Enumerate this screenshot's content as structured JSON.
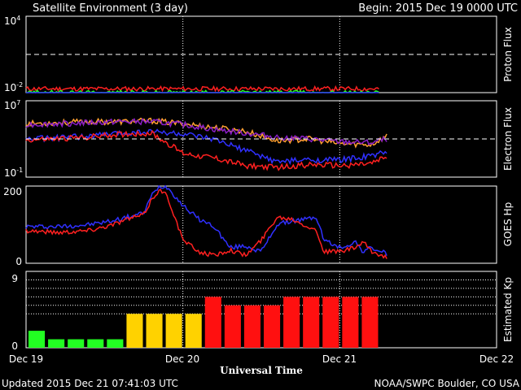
{
  "header": {
    "title": "Satellite Environment (3 day)",
    "begin": "Begin:  2015 Dec 19 0000 UTC"
  },
  "footer": {
    "updated": "Updated 2015 Dec 21 07:41:03 UTC",
    "credit": "NOAA/SWPC Boulder, CO USA"
  },
  "x_axis": {
    "title": "Universal Time",
    "tick_labels": [
      "Dec 19",
      "Dec 20",
      "Dec 21",
      "Dec 22"
    ]
  },
  "colors": {
    "red": "#ff2020",
    "green": "#22ff22",
    "blue": "#3030ff",
    "orange": "#ffa030",
    "purple": "#8a1ec8",
    "kp_green": "#22ff22",
    "kp_yellow": "#ffd200",
    "kp_red": "#ff1010"
  },
  "chart_data": [
    {
      "type": "line",
      "ylabel": "Proton Flux",
      "scale": "log",
      "ylim_exp": [
        -2,
        4
      ],
      "y_tick_labels": [
        "10^4",
        "10^-2"
      ],
      "threshold_exp": 1,
      "x_days": [
        0,
        0.25,
        0.5,
        0.75,
        1.0,
        1.25,
        1.5,
        1.75,
        2.0,
        2.25
      ],
      "series": [
        {
          "color": "red",
          "log_values": [
            -1.7,
            -1.7,
            -1.7,
            -1.7,
            -1.7,
            -1.7,
            -1.7,
            -1.7,
            -1.7,
            -1.7
          ]
        },
        {
          "color": "green",
          "log_values": [
            -2.0,
            -2.0,
            -2.0,
            -2.0,
            -2.0,
            -2.0,
            -2.0,
            -2.0,
            -2.0,
            -2.0
          ]
        },
        {
          "color": "blue",
          "log_values": [
            -2.3,
            -2.3,
            -2.3,
            -2.3,
            -2.3,
            -2.3,
            -2.3,
            -2.3,
            -2.3,
            -2.3
          ]
        }
      ]
    },
    {
      "type": "line",
      "ylabel": "Electron Flux",
      "scale": "log",
      "ylim_exp": [
        -1,
        7
      ],
      "y_tick_labels": [
        "10^7",
        "10^-1"
      ],
      "threshold_exp": 3,
      "x_days": [
        0,
        0.2,
        0.4,
        0.6,
        0.8,
        1.0,
        1.2,
        1.4,
        1.6,
        1.8,
        2.0,
        2.2,
        2.3
      ],
      "series": [
        {
          "color": "orange",
          "log_values": [
            4.6,
            4.7,
            4.8,
            4.8,
            4.9,
            4.6,
            4.2,
            3.8,
            2.8,
            3.0,
            2.5,
            2.4,
            3.3
          ]
        },
        {
          "color": "purple",
          "log_values": [
            4.5,
            4.6,
            4.7,
            4.8,
            4.8,
            4.5,
            4.0,
            3.6,
            3.2,
            3.0,
            2.7,
            2.6,
            3.0
          ]
        },
        {
          "color": "blue",
          "log_values": [
            3.0,
            3.1,
            3.3,
            3.6,
            3.8,
            3.5,
            2.9,
            1.8,
            0.6,
            0.8,
            0.8,
            1.2,
            1.7
          ]
        },
        {
          "color": "red",
          "log_values": [
            2.9,
            3.0,
            3.2,
            3.5,
            3.6,
            1.5,
            1.0,
            0.2,
            0.0,
            0.3,
            0.2,
            0.4,
            1.1
          ]
        }
      ]
    },
    {
      "type": "line",
      "ylabel": "GOES Hp",
      "ylim": [
        0,
        200
      ],
      "y_tick_labels": [
        "200",
        "0"
      ],
      "x_days": [
        0,
        0.2,
        0.4,
        0.55,
        0.65,
        0.75,
        0.8,
        0.85,
        0.9,
        1.0,
        1.1,
        1.2,
        1.3,
        1.4,
        1.5,
        1.6,
        1.7,
        1.8,
        1.85,
        1.9,
        2.0,
        2.1,
        2.15,
        2.2,
        2.3
      ],
      "series": [
        {
          "color": "blue",
          "values": [
            95,
            95,
            100,
            110,
            120,
            130,
            175,
            200,
            198,
            150,
            115,
            95,
            40,
            45,
            30,
            100,
            110,
            115,
            120,
            60,
            40,
            55,
            30,
            40,
            25
          ]
        },
        {
          "color": "red",
          "values": [
            85,
            80,
            85,
            100,
            115,
            125,
            165,
            190,
            175,
            60,
            30,
            20,
            35,
            20,
            60,
            120,
            115,
            95,
            85,
            30,
            30,
            40,
            55,
            30,
            15
          ]
        }
      ]
    },
    {
      "type": "bar",
      "ylabel": "Estimated Kp",
      "ylim": [
        0,
        9
      ],
      "y_tick_labels": [
        "9",
        "0"
      ],
      "guide_levels": [
        4,
        5,
        6,
        7,
        8
      ],
      "bar_width_days": 0.125,
      "values": [
        2,
        1,
        1,
        1,
        1,
        4,
        4,
        4,
        4,
        6,
        5,
        5,
        5,
        6,
        6,
        6,
        6,
        6
      ]
    }
  ]
}
